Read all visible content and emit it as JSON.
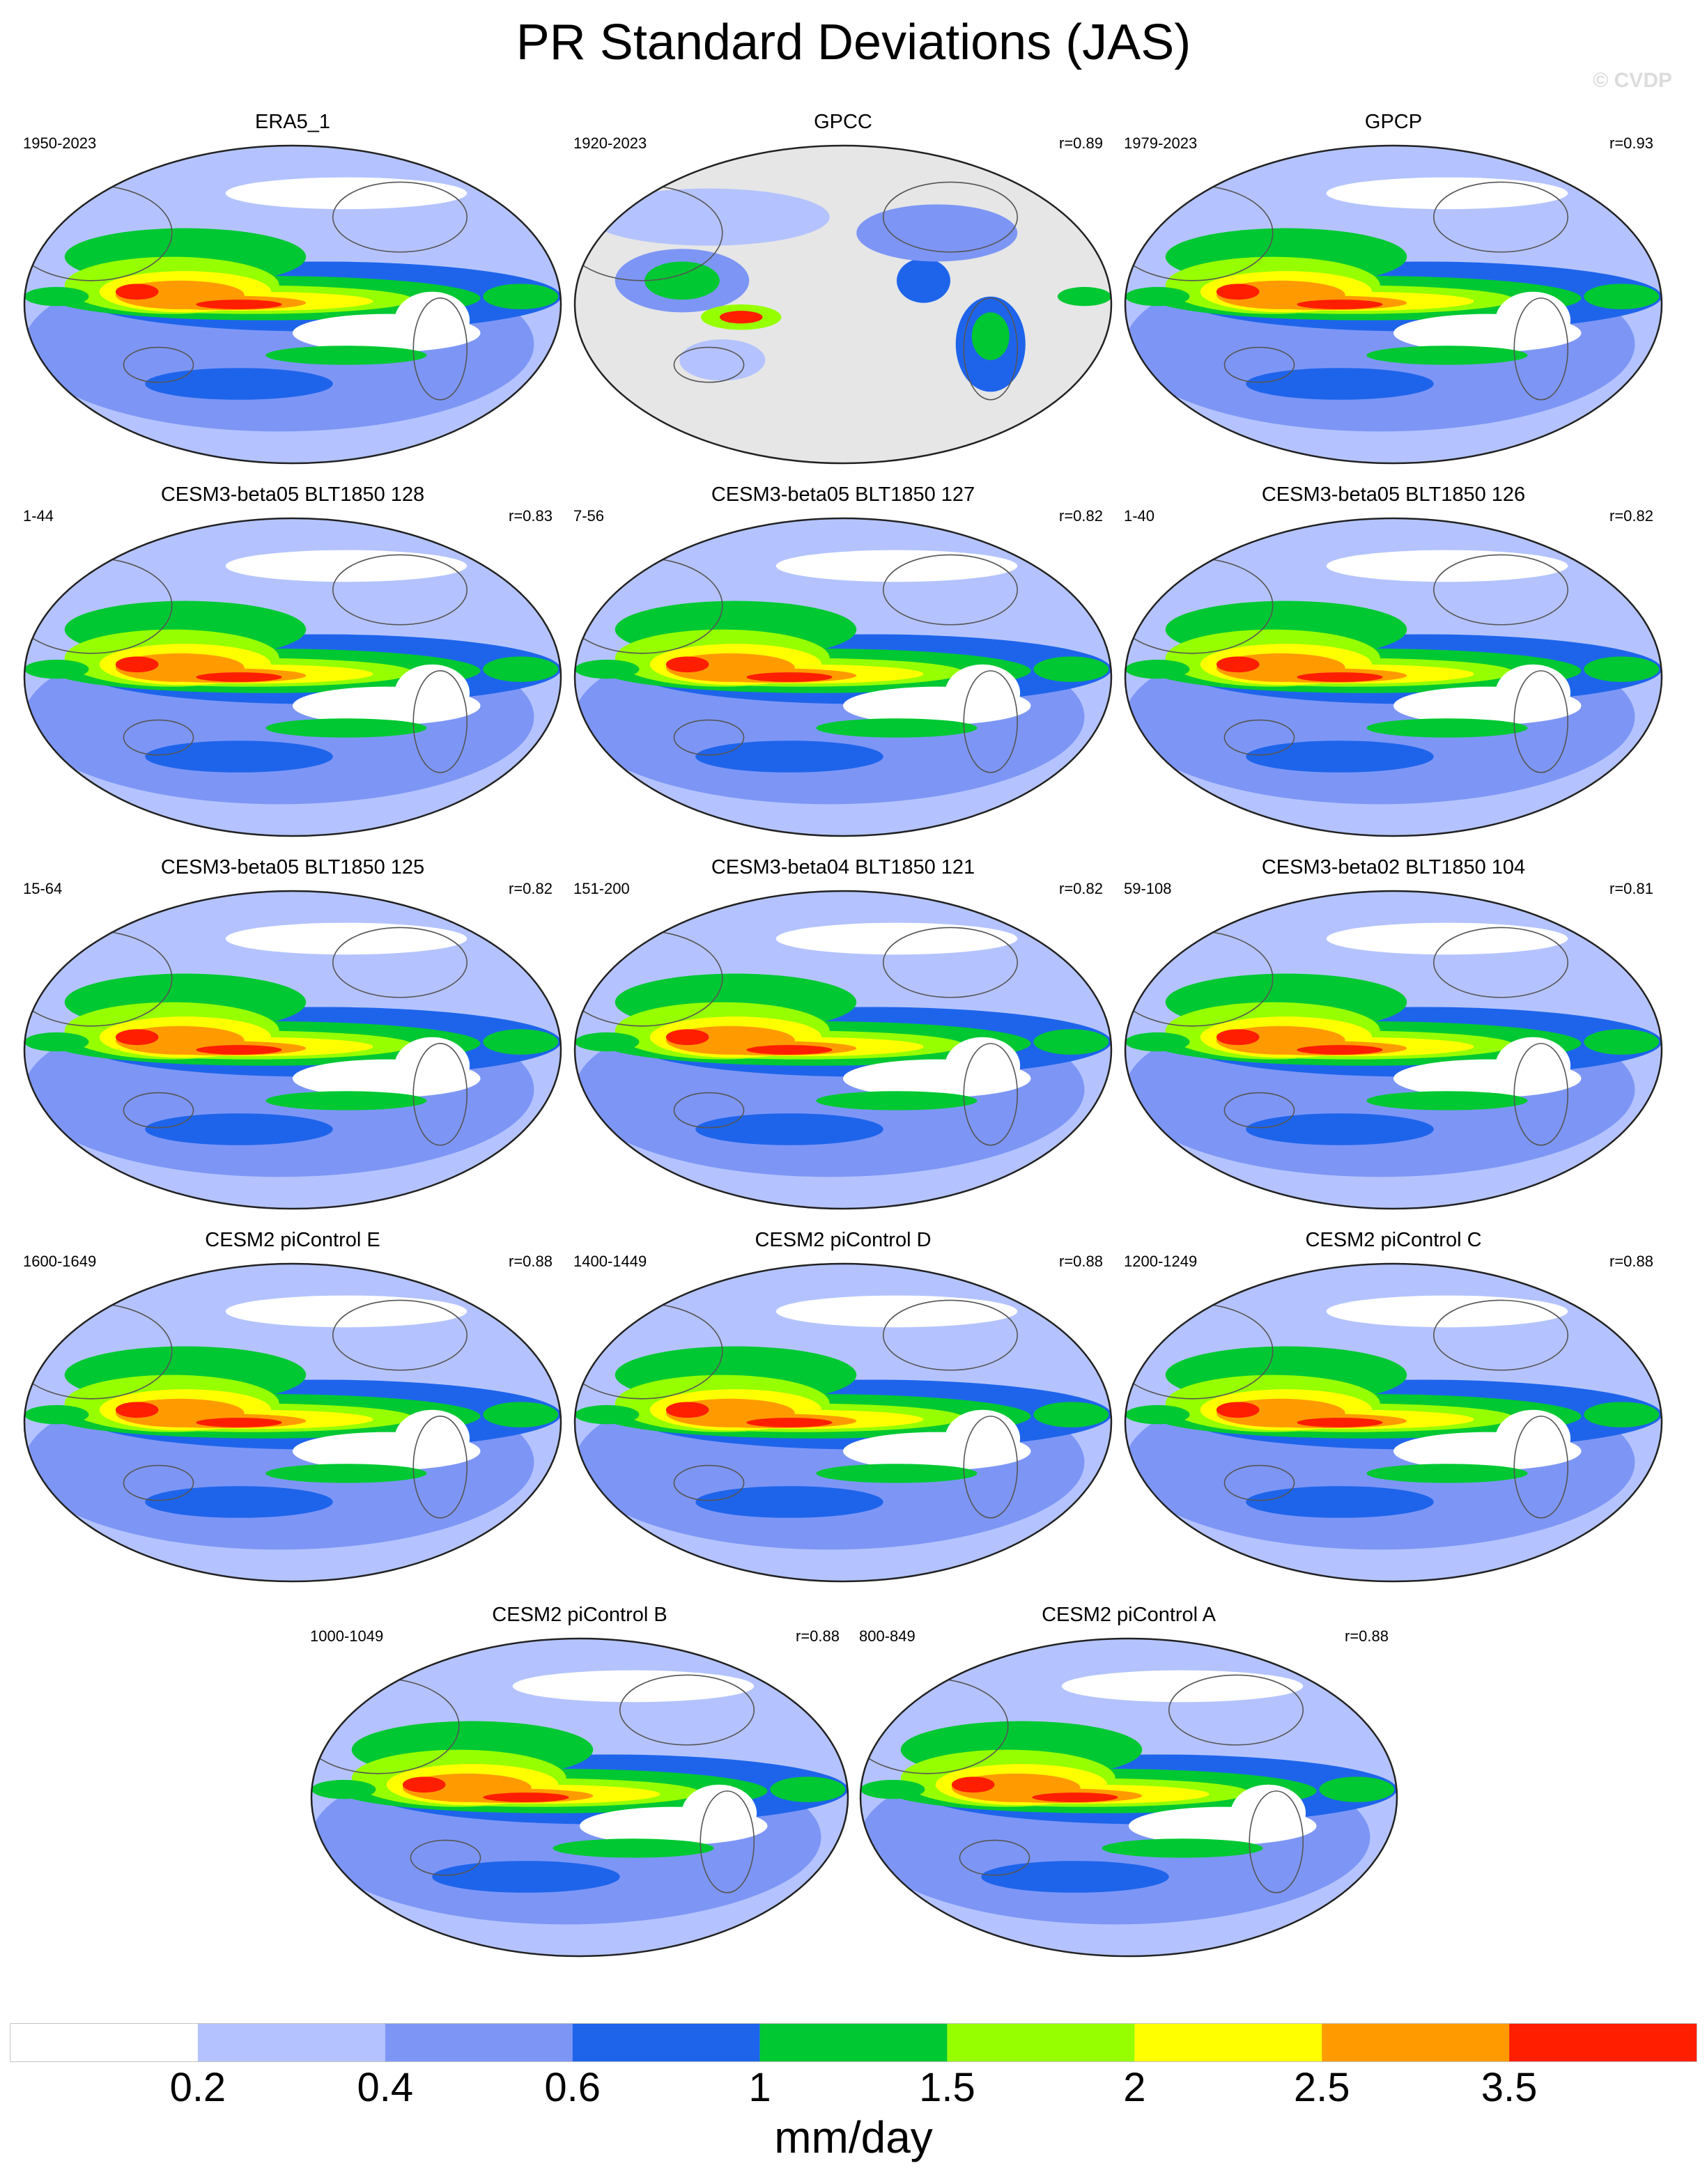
{
  "title": "PR Standard Deviations (JAS)",
  "watermark": "© CVDP",
  "chart_data": {
    "type": "heatmap",
    "title": "PR Standard Deviations (JAS)",
    "projection": "Robinson, Pacific-centred",
    "panels": [
      {
        "name": "ERA5_1",
        "years": "1950-2023",
        "r": ""
      },
      {
        "name": "GPCC",
        "years": "1920-2023",
        "r": "r=0.89"
      },
      {
        "name": "GPCP",
        "years": "1979-2023",
        "r": "r=0.93"
      },
      {
        "name": "CESM3-beta05 BLT1850 128",
        "years": "1-44",
        "r": "r=0.83"
      },
      {
        "name": "CESM3-beta05 BLT1850 127",
        "years": "7-56",
        "r": "r=0.82"
      },
      {
        "name": "CESM3-beta05 BLT1850 126",
        "years": "1-40",
        "r": "r=0.82"
      },
      {
        "name": "CESM3-beta05 BLT1850 125",
        "years": "15-64",
        "r": "r=0.82"
      },
      {
        "name": "CESM3-beta04 BLT1850 121",
        "years": "151-200",
        "r": "r=0.82"
      },
      {
        "name": "CESM3-beta02 BLT1850 104",
        "years": "59-108",
        "r": "r=0.81"
      },
      {
        "name": "CESM2 piControl E",
        "years": "1600-1649",
        "r": "r=0.88"
      },
      {
        "name": "CESM2 piControl D",
        "years": "1400-1449",
        "r": "r=0.88"
      },
      {
        "name": "CESM2 piControl C",
        "years": "1200-1249",
        "r": "r=0.88"
      },
      {
        "name": "CESM2 piControl B",
        "years": "1000-1049",
        "r": "r=0.88"
      },
      {
        "name": "CESM2 piControl A",
        "years": "800-849",
        "r": "r=0.88"
      }
    ],
    "colorbar": {
      "unit_label": "mm/day",
      "tick_labels": [
        "0.2",
        "0.4",
        "0.6",
        "1",
        "1.5",
        "2",
        "2.5",
        "3.5"
      ],
      "levels": [
        0.2,
        0.4,
        0.6,
        1,
        1.5,
        2,
        2.5,
        3.5
      ],
      "colors": [
        "#ffffff",
        "#b4c3ff",
        "#7d96f5",
        "#1e64eb",
        "#00c832",
        "#96ff00",
        "#ffff00",
        "#ff9b00",
        "#ff1e00"
      ]
    }
  }
}
